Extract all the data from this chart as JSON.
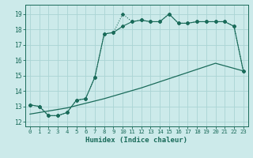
{
  "xlabel": "Humidex (Indice chaleur)",
  "bg_color": "#cceaea",
  "line_color": "#1a6b5a",
  "xlim": [
    -0.5,
    23.5
  ],
  "ylim": [
    11.7,
    19.6
  ],
  "xticks": [
    0,
    1,
    2,
    3,
    4,
    5,
    6,
    7,
    8,
    9,
    10,
    11,
    12,
    13,
    14,
    15,
    16,
    17,
    18,
    19,
    20,
    21,
    22,
    23
  ],
  "yticks": [
    12,
    13,
    14,
    15,
    16,
    17,
    18,
    19
  ],
  "line1_x": [
    0,
    1,
    2,
    3,
    4,
    5,
    6,
    7,
    8,
    9,
    10,
    11,
    12,
    13,
    14,
    15,
    16,
    17,
    18,
    19,
    20,
    21,
    22,
    23
  ],
  "line1_y": [
    13.1,
    13.0,
    12.4,
    12.4,
    12.6,
    13.4,
    13.5,
    14.9,
    17.7,
    17.8,
    19.0,
    18.5,
    18.6,
    18.5,
    18.5,
    19.0,
    18.4,
    18.4,
    18.5,
    18.5,
    18.5,
    18.5,
    18.2,
    15.3
  ],
  "line2_x": [
    0,
    1,
    2,
    3,
    4,
    5,
    6,
    7,
    8,
    9,
    10,
    11,
    12,
    13,
    14,
    15,
    16,
    17,
    18,
    19,
    20,
    21,
    22,
    23
  ],
  "line2_y": [
    13.1,
    13.0,
    12.4,
    12.4,
    12.6,
    13.4,
    13.5,
    14.9,
    17.7,
    17.8,
    18.2,
    18.5,
    18.6,
    18.5,
    18.5,
    19.0,
    18.4,
    18.4,
    18.5,
    18.5,
    18.5,
    18.5,
    18.2,
    15.3
  ],
  "line3_x": [
    0,
    4,
    8,
    12,
    16,
    20,
    23
  ],
  "line3_y": [
    12.5,
    12.9,
    13.5,
    14.2,
    15.0,
    15.8,
    15.3
  ],
  "grid_color": "#aad4d4",
  "xlabel_fontsize": 6.5,
  "tick_fontsize": 5.5
}
